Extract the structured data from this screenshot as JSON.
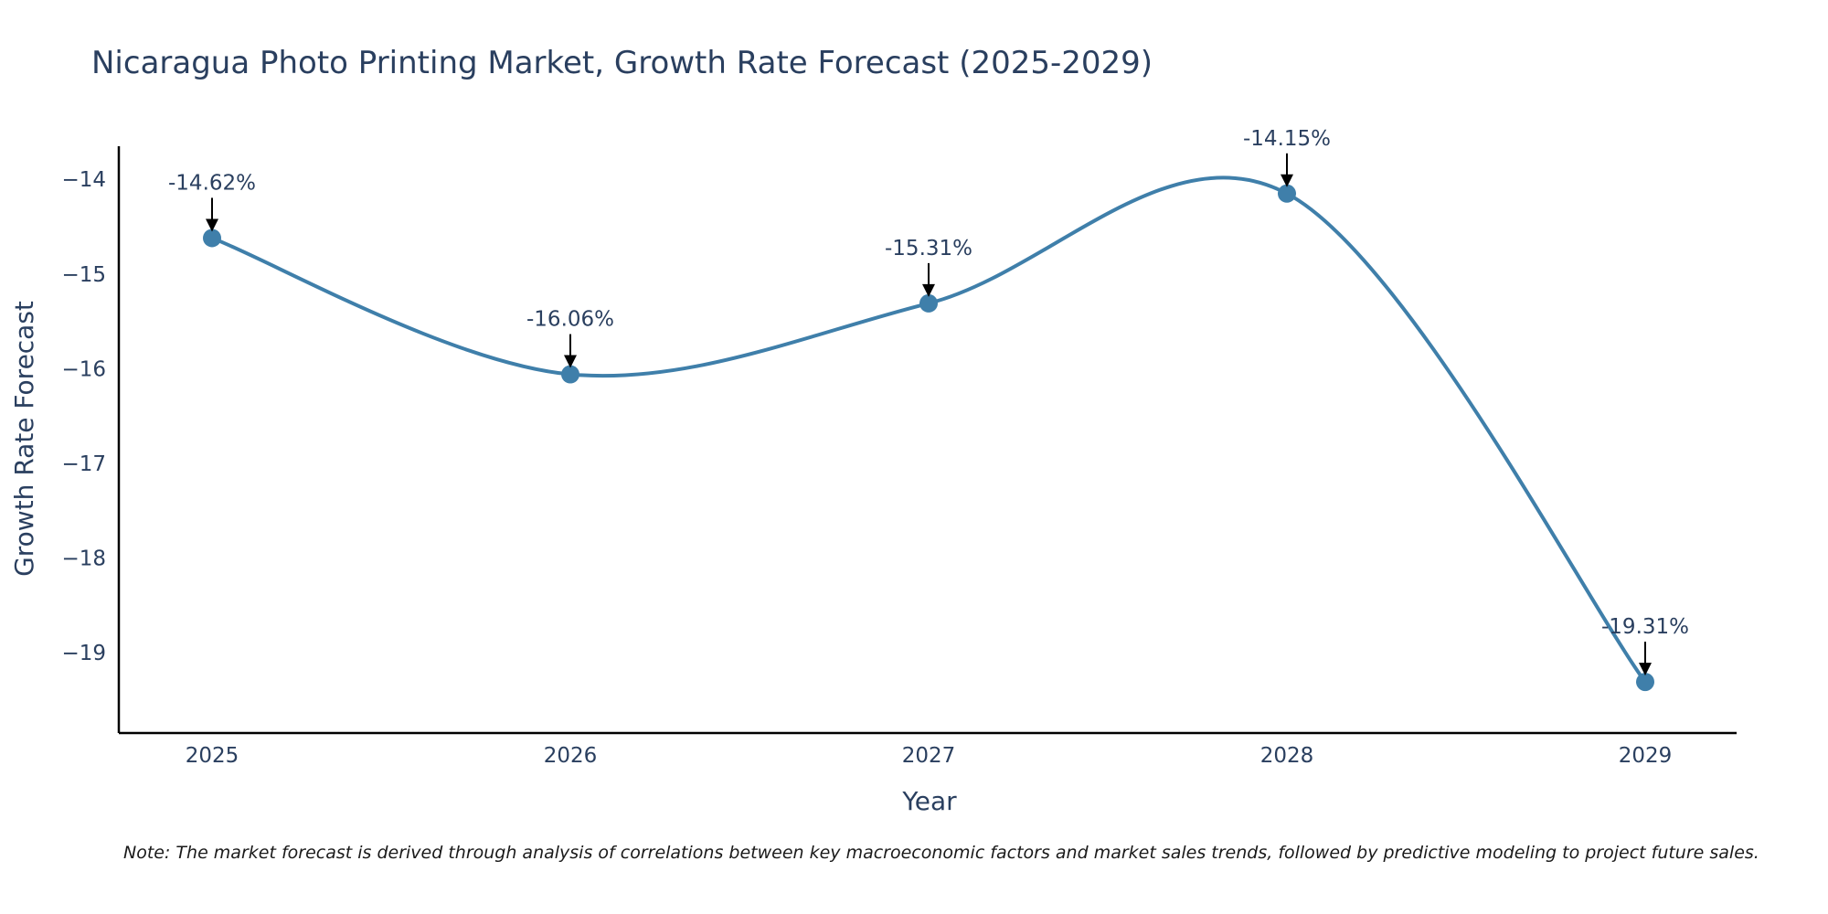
{
  "chart_data": {
    "type": "line",
    "title": "Nicaragua Photo Printing Market, Growth Rate Forecast (2025-2029)",
    "xlabel": "Year",
    "ylabel": "Growth Rate Forecast",
    "categories": [
      "2025",
      "2026",
      "2027",
      "2028",
      "2029"
    ],
    "series": [
      {
        "name": "Growth Rate Forecast",
        "values": [
          -14.62,
          -16.06,
          -15.31,
          -14.15,
          -19.31
        ],
        "labels": [
          "-14.62%",
          "-16.06%",
          "-15.31%",
          "-14.15%",
          "-19.31%"
        ],
        "color": "#3f7faa"
      }
    ],
    "ylim": [
      -19.85,
      -13.65
    ],
    "yticks": [
      -14,
      -15,
      -16,
      -17,
      -18,
      -19
    ],
    "ytick_labels": [
      "−14",
      "−15",
      "−16",
      "−17",
      "−18",
      "−19"
    ],
    "grid": false,
    "legend": "none"
  },
  "note": "Note: The market forecast is derived through analysis of correlations between key macroeconomic factors and market sales trends, followed by predictive modeling to project future sales."
}
